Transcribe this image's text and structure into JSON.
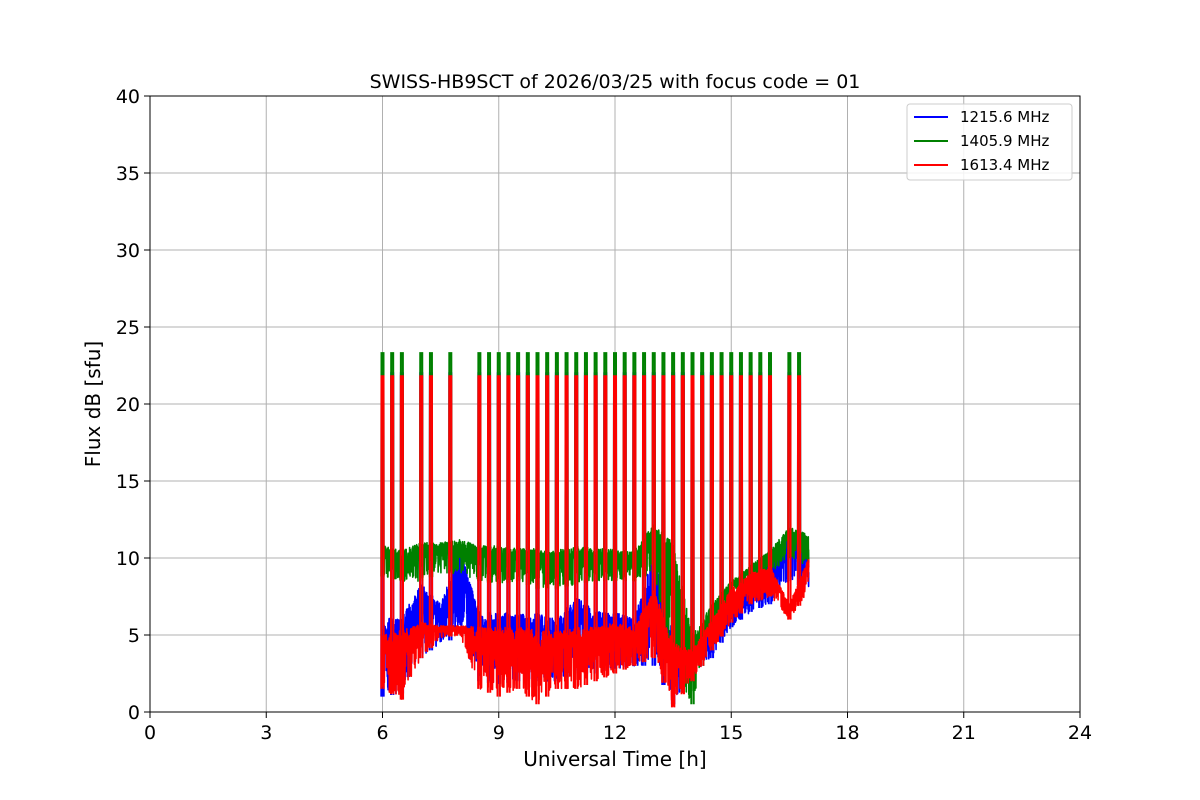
{
  "chart_data": {
    "type": "line",
    "title": "SWISS-HB9SCT of 2026/03/25 with focus code = 01",
    "xlabel": "Universal Time [h]",
    "ylabel": "Flux dB [sfu]",
    "xlim": [
      0,
      24
    ],
    "ylim": [
      0,
      40
    ],
    "xticks": [
      0,
      3,
      6,
      9,
      12,
      15,
      18,
      21,
      24
    ],
    "yticks": [
      0,
      5,
      10,
      15,
      20,
      25,
      30,
      35,
      40
    ],
    "grid": true,
    "legend_position": "top-right",
    "data_range_x": [
      6.0,
      17.0
    ],
    "calibration_spikes_x": [
      6.0,
      6.25,
      6.5,
      7.0,
      7.25,
      7.75,
      8.5,
      8.75,
      9.0,
      9.25,
      9.5,
      9.75,
      10.0,
      10.25,
      10.5,
      10.75,
      11.0,
      11.25,
      11.5,
      11.75,
      12.0,
      12.25,
      12.5,
      12.75,
      13.0,
      13.25,
      13.5,
      13.75,
      14.0,
      14.25,
      14.5,
      14.75,
      15.0,
      15.25,
      15.5,
      15.75,
      16.0,
      16.5,
      16.75
    ],
    "series": [
      {
        "name": "1215.6 MHz",
        "color": "#0000ff",
        "spike_peak": 22.0,
        "x": [
          6.0,
          6.5,
          7.0,
          7.5,
          8.0,
          8.5,
          9.0,
          9.5,
          10.0,
          10.5,
          11.0,
          11.5,
          12.0,
          12.5,
          13.0,
          13.5,
          14.0,
          14.5,
          15.0,
          15.5,
          16.0,
          16.5,
          17.0
        ],
        "upper": [
          6.0,
          6.2,
          8.3,
          7.0,
          10.5,
          6.5,
          6.5,
          6.4,
          6.4,
          6.0,
          7.5,
          6.5,
          6.5,
          6.0,
          10.5,
          5.0,
          4.5,
          6.0,
          7.0,
          8.5,
          10.0,
          12.0,
          10.5
        ],
        "lower": [
          1.0,
          1.2,
          3.5,
          4.5,
          4.8,
          2.0,
          1.8,
          2.0,
          2.0,
          2.0,
          2.5,
          2.5,
          2.8,
          3.0,
          3.0,
          0.5,
          2.5,
          3.5,
          5.5,
          6.5,
          7.0,
          8.5,
          8.0
        ]
      },
      {
        "name": "1405.9 MHz",
        "color": "#008000",
        "spike_peak": 23.3,
        "x": [
          6.0,
          6.5,
          7.0,
          7.5,
          8.0,
          8.5,
          9.0,
          9.5,
          10.0,
          10.5,
          11.0,
          11.5,
          12.0,
          12.5,
          13.0,
          13.5,
          14.0,
          14.5,
          15.0,
          15.5,
          16.0,
          16.5,
          17.0
        ],
        "upper": [
          10.8,
          10.5,
          11.0,
          11.0,
          11.2,
          10.8,
          10.8,
          10.6,
          10.6,
          10.5,
          10.8,
          10.6,
          10.6,
          10.5,
          12.2,
          11.0,
          5.0,
          7.0,
          8.5,
          9.5,
          10.5,
          12.0,
          11.5
        ],
        "lower": [
          8.8,
          8.5,
          8.5,
          9.0,
          9.0,
          8.5,
          8.3,
          8.5,
          8.0,
          8.0,
          8.3,
          8.5,
          8.5,
          8.5,
          9.0,
          2.0,
          0.5,
          5.5,
          7.5,
          8.5,
          9.0,
          10.0,
          9.5
        ]
      },
      {
        "name": "1613.4 MHz",
        "color": "#ff0000",
        "spike_peak": 21.8,
        "x": [
          6.0,
          6.5,
          7.0,
          7.5,
          8.0,
          8.5,
          9.0,
          9.5,
          10.0,
          10.5,
          11.0,
          11.5,
          12.0,
          12.5,
          13.0,
          13.5,
          14.0,
          14.5,
          15.0,
          15.5,
          16.0,
          16.5,
          17.0
        ],
        "upper": [
          5.0,
          5.3,
          5.8,
          5.6,
          5.6,
          5.5,
          5.5,
          5.5,
          5.3,
          5.2,
          5.5,
          5.5,
          5.8,
          5.5,
          8.0,
          4.5,
          4.0,
          6.0,
          8.0,
          9.0,
          9.5,
          7.0,
          10.0
        ],
        "lower": [
          1.5,
          0.8,
          3.5,
          4.8,
          5.0,
          1.5,
          1.0,
          1.5,
          0.5,
          1.5,
          1.5,
          2.0,
          2.5,
          3.0,
          3.5,
          0.3,
          2.0,
          4.0,
          5.8,
          7.0,
          7.5,
          6.0,
          7.8
        ]
      }
    ]
  }
}
